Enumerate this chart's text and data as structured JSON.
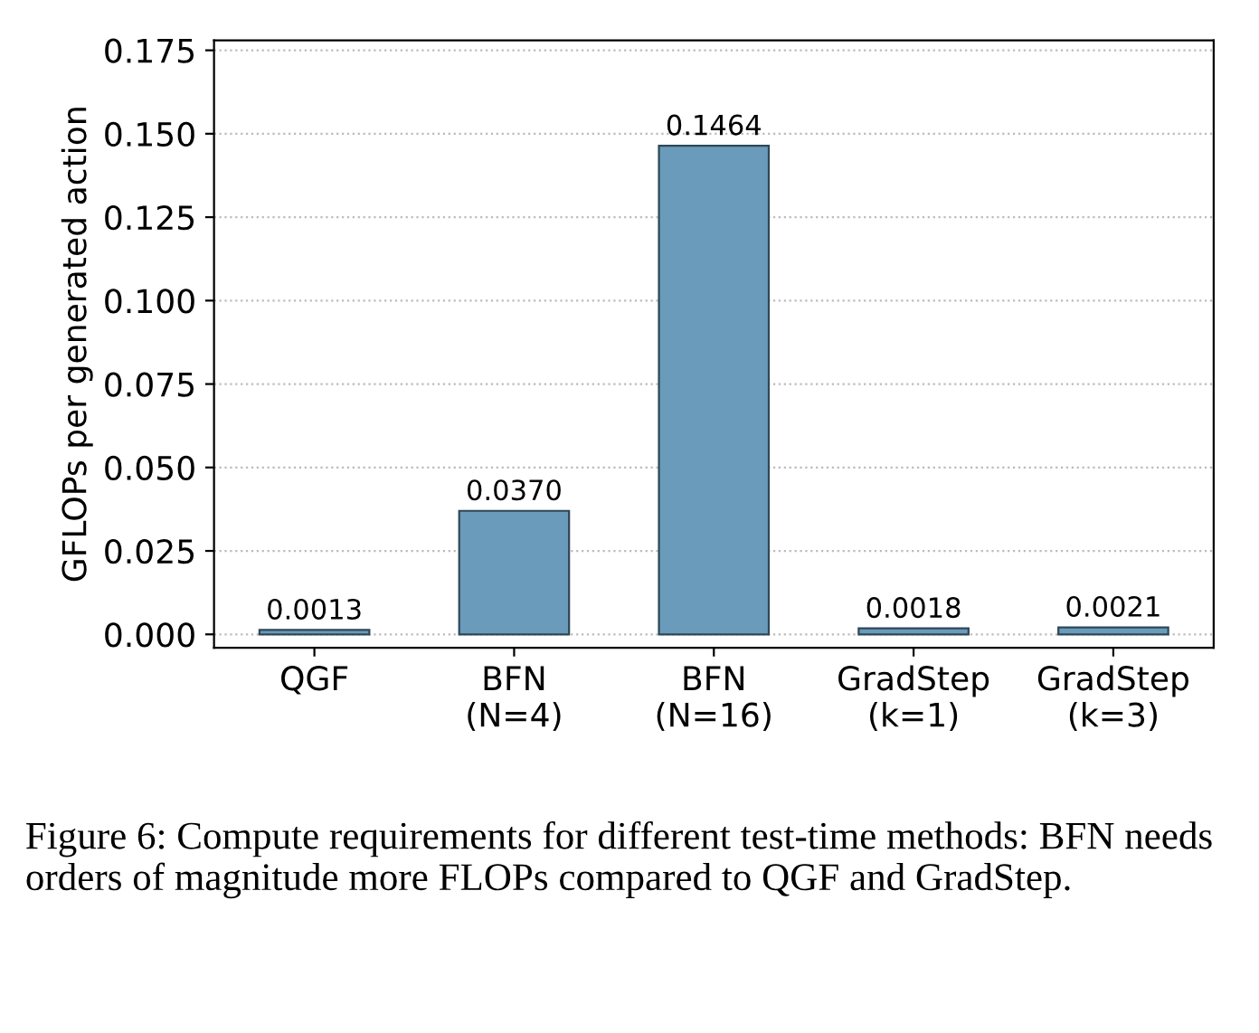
{
  "chart_data": {
    "type": "bar",
    "ylabel": "GFLOPs per generated action",
    "categories": [
      "QGF",
      "BFN\n(N=4)",
      "BFN\n(N=16)",
      "GradStep\n(k=1)",
      "GradStep\n(k=3)"
    ],
    "values": [
      0.0013,
      0.037,
      0.1464,
      0.0018,
      0.0021
    ],
    "value_labels": [
      "0.0013",
      "0.0370",
      "0.1464",
      "0.0018",
      "0.0021"
    ],
    "color": "#6a9bba",
    "ylim": [
      -0.004,
      0.178
    ],
    "yticks": [
      {
        "value": 0,
        "label": "0.000"
      },
      {
        "value": 0.025,
        "label": "0.025"
      },
      {
        "value": 0.05,
        "label": "0.050"
      },
      {
        "value": 0.075,
        "label": "0.075"
      },
      {
        "value": 0.1,
        "label": "0.100"
      },
      {
        "value": 0.125,
        "label": "0.125"
      },
      {
        "value": 0.15,
        "label": "0.150"
      },
      {
        "value": 0.175,
        "label": "0.175"
      }
    ],
    "grid": "y",
    "annotations": [
      "Figure 6: Compute requirements for different test-time methods: BFN needs orders of magnitude more FLOPs compared to QGF and GradStep."
    ]
  }
}
